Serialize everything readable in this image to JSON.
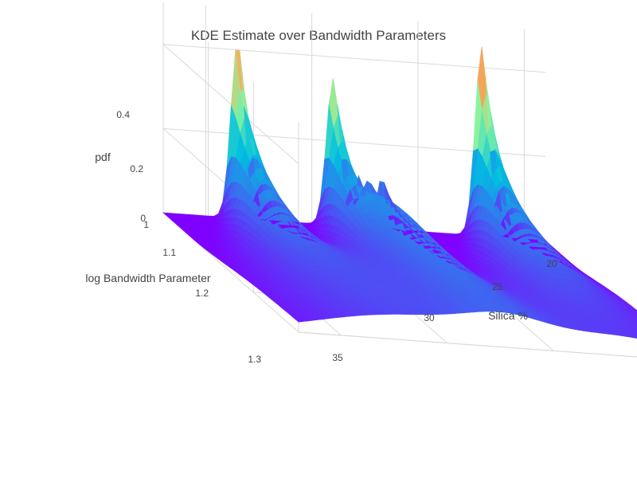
{
  "chart_data": {
    "type": "surface",
    "title": "KDE Estimate over Bandwidth Parameters",
    "x_axis": {
      "label": "Silica %",
      "ticks": [
        20,
        25,
        30,
        35
      ],
      "range": [
        18,
        36
      ]
    },
    "y_axis": {
      "label": "log Bandwidth Parameter",
      "ticks": [
        1,
        1.1,
        1.2,
        1.3
      ],
      "tick_labels": [
        "1",
        "1.1",
        "1.2",
        "1.3"
      ],
      "range": [
        1,
        1.3
      ]
    },
    "z_axis": {
      "label": "pdf",
      "ticks": [
        0,
        0.2,
        0.4
      ],
      "tick_labels": [
        "0",
        "0.2",
        "0.4"
      ],
      "range": [
        0,
        0.5
      ]
    },
    "colorscale": "Rainbow",
    "colorscale_stops": [
      "#8000ff",
      "#3b6cf0",
      "#00c0e0",
      "#88f5a0",
      "#f5b060",
      "#e03020"
    ],
    "peaks": [
      {
        "silica": 21.5,
        "peak_pdf": 0.42,
        "spread": 0.9
      },
      {
        "silica": 26.0,
        "peak_pdf": 0.35,
        "spread": 0.9
      },
      {
        "silica": 27.2,
        "peak_pdf": 0.12,
        "spread": 0.5
      },
      {
        "silica": 27.7,
        "peak_pdf": 0.12,
        "spread": 0.5
      },
      {
        "silica": 28.3,
        "peak_pdf": 0.13,
        "spread": 0.5
      },
      {
        "silica": 33.0,
        "peak_pdf": 0.45,
        "spread": 0.9
      }
    ]
  }
}
